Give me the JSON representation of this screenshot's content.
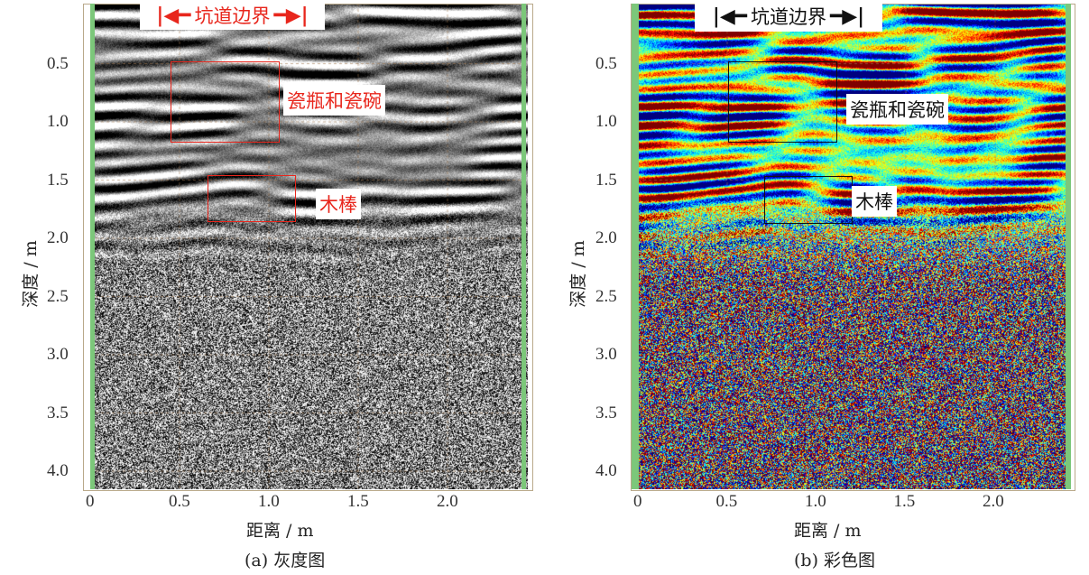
{
  "chart_data": [
    {
      "type": "heatmap",
      "panel": "a",
      "colormap": "gray",
      "caption": "(a) 灰度图",
      "xlabel": "距离 / m",
      "ylabel": "深度 / m",
      "xlim": [
        0,
        2.4
      ],
      "ylim": [
        4.15,
        0
      ],
      "xticks": [
        "0",
        "0.5",
        "1.0",
        "1.5",
        "2.0"
      ],
      "yticks": [
        "0.5",
        "1.0",
        "1.5",
        "2.0",
        "2.5",
        "3.0",
        "3.5",
        "4.0"
      ],
      "annotations": {
        "boundary": "坑道边界",
        "target1": "瓷瓶和瓷碗",
        "target2": "木棒"
      },
      "color": "#e8261c"
    },
    {
      "type": "heatmap",
      "panel": "b",
      "colormap": "jet",
      "caption": "(b) 彩色图",
      "xlabel": "距离 / m",
      "ylabel": "深度 / m",
      "xlim": [
        0,
        2.4
      ],
      "ylim": [
        4.15,
        0
      ],
      "xticks": [
        "0",
        "0.5",
        "1.0",
        "1.5",
        "2.0"
      ],
      "yticks": [
        "0.5",
        "1.0",
        "1.5",
        "2.0",
        "2.5",
        "3.0",
        "3.5",
        "4.0"
      ],
      "annotations": {
        "boundary": "坑道边界",
        "target1": "瓷瓶和瓷碗",
        "target2": "木棒"
      },
      "color": "#111111"
    }
  ]
}
